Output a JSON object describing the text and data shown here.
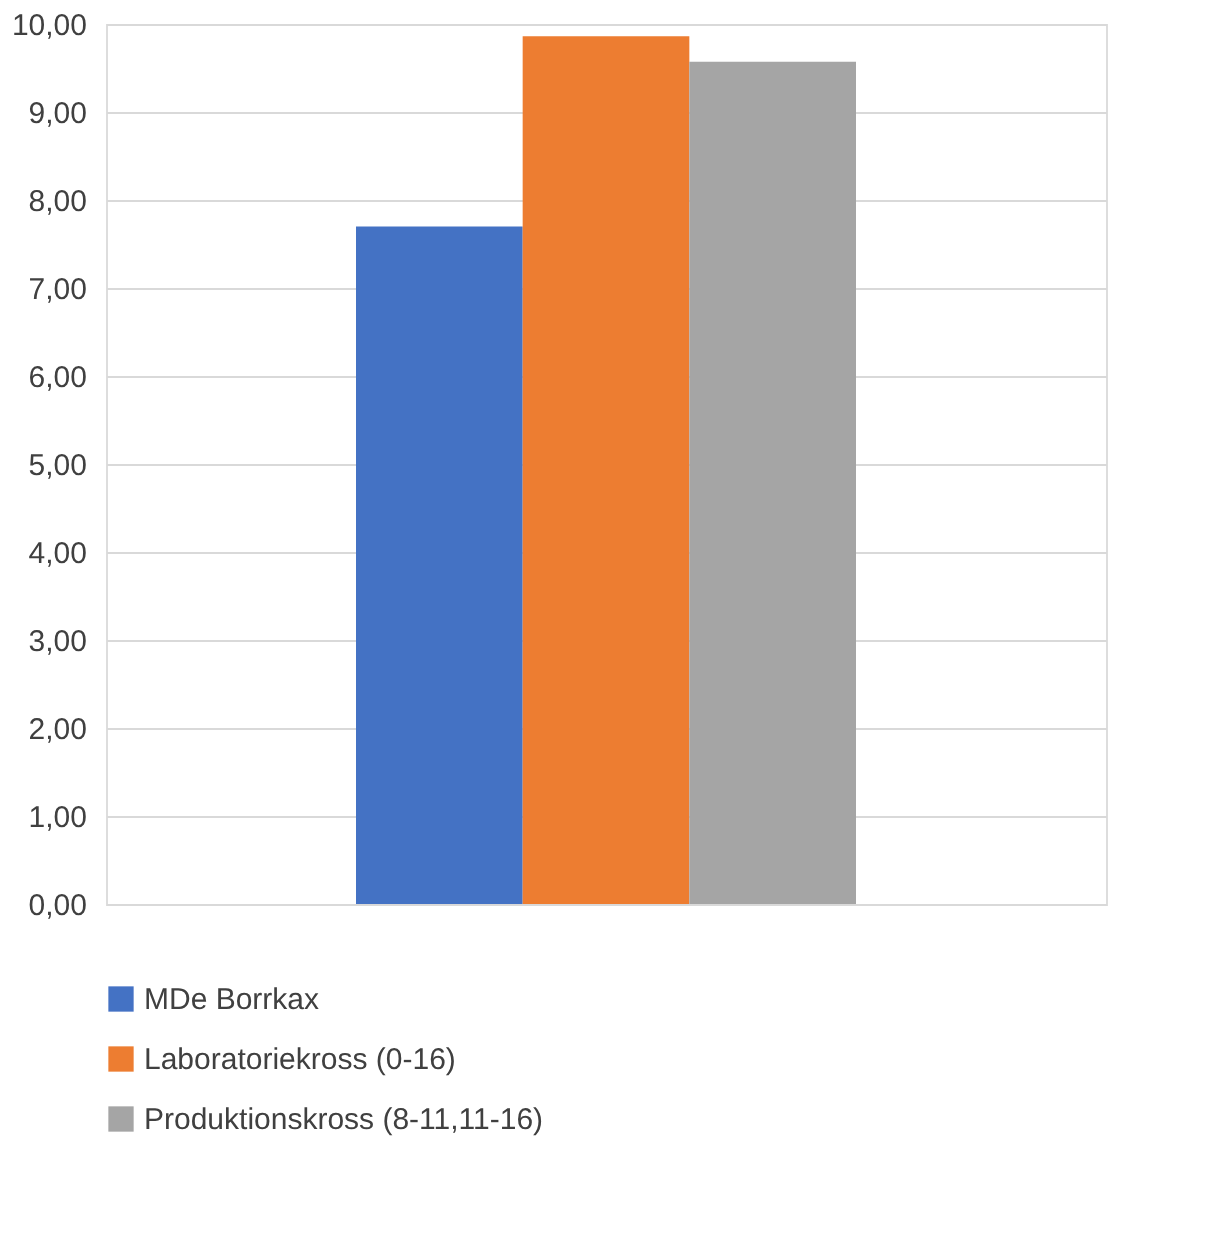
{
  "chart_data": {
    "type": "bar",
    "categories": [
      null
    ],
    "series": [
      {
        "name": "MDe Borrkax",
        "color": "#4472c4",
        "values": [
          7.7
        ]
      },
      {
        "name": "Laboratoriekross (0-16)",
        "color": "#ed7d31",
        "values": [
          9.86
        ]
      },
      {
        "name": "Produktionskross (8-11,11-16)",
        "color": "#a5a5a5",
        "values": [
          9.57
        ]
      }
    ],
    "ylim": [
      0,
      10
    ],
    "yticks": [
      {
        "value": 0,
        "label": "0,00"
      },
      {
        "value": 1,
        "label": "1,00"
      },
      {
        "value": 2,
        "label": "2,00"
      },
      {
        "value": 3,
        "label": "3,00"
      },
      {
        "value": 4,
        "label": "4,00"
      },
      {
        "value": 5,
        "label": "5,00"
      },
      {
        "value": 6,
        "label": "6,00"
      },
      {
        "value": 7,
        "label": "7,00"
      },
      {
        "value": 8,
        "label": "8,00"
      },
      {
        "value": 9,
        "label": "9,00"
      },
      {
        "value": 10,
        "label": "10,00"
      }
    ],
    "grid": "y",
    "legend": "bottom",
    "tick_labels": "y"
  }
}
